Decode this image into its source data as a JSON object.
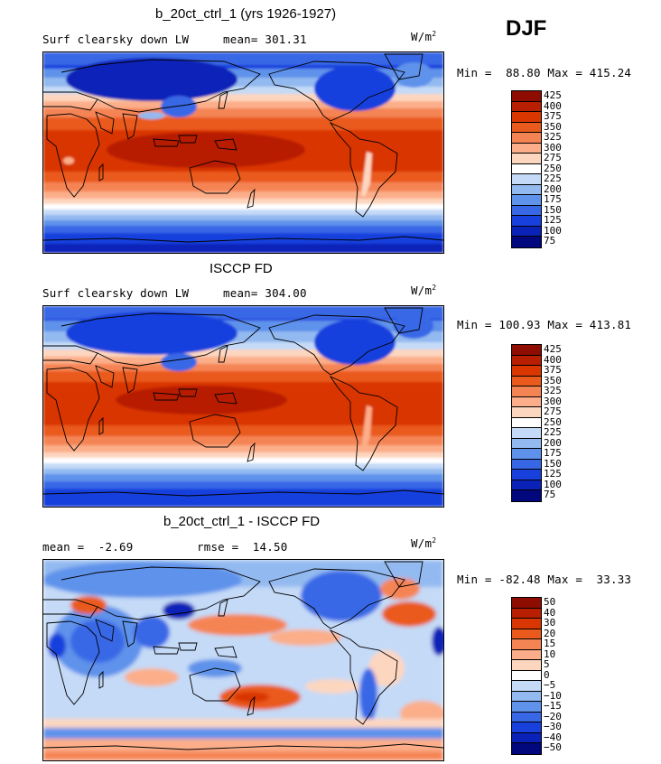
{
  "season": "DJF",
  "chart_data": [
    {
      "type": "heatmap",
      "title": "b_20ct_ctrl_1 (yrs 1926-1927)",
      "variable": "Surf clearsky down LW",
      "stat_text": "mean= 301.31",
      "units": "W/m",
      "units_exp": "2",
      "minmax_text": "Min =  88.80 Max = 415.24",
      "min": 88.8,
      "max": 415.24,
      "mean": 301.31,
      "colorbar_levels": [
        "425",
        "400",
        "375",
        "350",
        "325",
        "300",
        "275",
        "250",
        "225",
        "200",
        "175",
        "150",
        "125",
        "100",
        "75"
      ],
      "colorbar_colors": [
        "#8e0c00",
        "#b81e00",
        "#d93600",
        "#ea5a1c",
        "#f58455",
        "#fbae89",
        "#fdd6c0",
        "#ffffff",
        "#c4daf7",
        "#93baf0",
        "#5f92eb",
        "#3867e6",
        "#1840dd",
        "#0a22b8",
        "#01077c"
      ]
    },
    {
      "type": "heatmap",
      "title": "ISCCP FD",
      "variable": "Surf clearsky down LW",
      "stat_text": "mean= 304.00",
      "units": "W/m",
      "units_exp": "2",
      "minmax_text": "Min = 100.93 Max = 413.81",
      "min": 100.93,
      "max": 413.81,
      "mean": 304.0,
      "colorbar_levels": [
        "425",
        "400",
        "375",
        "350",
        "325",
        "300",
        "275",
        "250",
        "225",
        "200",
        "175",
        "150",
        "125",
        "100",
        "75"
      ],
      "colorbar_colors": [
        "#8e0c00",
        "#b81e00",
        "#d93600",
        "#ea5a1c",
        "#f58455",
        "#fbae89",
        "#fdd6c0",
        "#ffffff",
        "#c4daf7",
        "#93baf0",
        "#5f92eb",
        "#3867e6",
        "#1840dd",
        "#0a22b8",
        "#01077c"
      ]
    },
    {
      "type": "heatmap",
      "title": "b_20ct_ctrl_1 - ISCCP FD",
      "mean_text": "mean =  -2.69",
      "rmse_text": "rmse =  14.50",
      "units": "W/m",
      "units_exp": "2",
      "minmax_text": "Min = -82.48 Max =  33.33",
      "min": -82.48,
      "max": 33.33,
      "mean": -2.69,
      "rmse": 14.5,
      "colorbar_levels": [
        "50",
        "40",
        "30",
        "20",
        "15",
        "10",
        "5",
        "0",
        "−5",
        "−10",
        "−15",
        "−20",
        "−30",
        "−40",
        "−50"
      ],
      "colorbar_colors": [
        "#8e0c00",
        "#b81e00",
        "#d93600",
        "#ea5a1c",
        "#f58455",
        "#fbae89",
        "#fdd6c0",
        "#ffffff",
        "#c4daf7",
        "#93baf0",
        "#5f92eb",
        "#3867e6",
        "#1840dd",
        "#0a22b8",
        "#01077c"
      ]
    }
  ]
}
